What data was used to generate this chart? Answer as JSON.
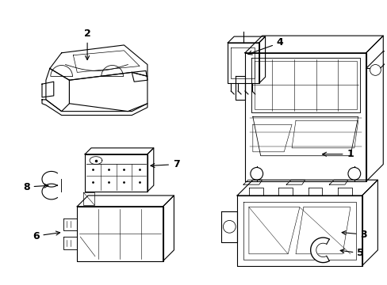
{
  "background_color": "#ffffff",
  "line_color": "#000000",
  "text_color": "#000000",
  "lw": 0.8,
  "figsize": [
    4.89,
    3.6
  ],
  "dpi": 100
}
